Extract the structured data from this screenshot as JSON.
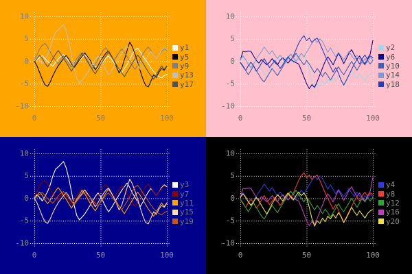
{
  "chart_data": {
    "type": "line",
    "title": "",
    "xlabel": "",
    "ylabel": "",
    "xlim": [
      0,
      100
    ],
    "ylim": [
      -10,
      10
    ],
    "xticks": [
      0,
      50,
      100
    ],
    "yticks": [
      10,
      5,
      0,
      -5,
      -10
    ],
    "grid": true,
    "legend_position": "right",
    "x": [
      0,
      2,
      4,
      6,
      8,
      10,
      12,
      14,
      16,
      18,
      20,
      22,
      24,
      26,
      28,
      30,
      32,
      34,
      36,
      38,
      40,
      42,
      44,
      46,
      48,
      50,
      52,
      54,
      56,
      58,
      60,
      62,
      64,
      66,
      68,
      70,
      72,
      74,
      76,
      78,
      80,
      82,
      84,
      86,
      88,
      90,
      92,
      94,
      96,
      98,
      100
    ],
    "shapes": {
      "L1": [
        0.5,
        0.2,
        0.9,
        1.3,
        0.6,
        0.0,
        -0.6,
        -1.1,
        -0.3,
        0.5,
        1.1,
        1.5,
        0.8,
        0.1,
        -0.7,
        -1.3,
        -0.7,
        0.1,
        0.8,
        1.4,
        0.9,
        0.2,
        -0.5,
        -1.1,
        -1.7,
        -0.9,
        -0.1,
        0.7,
        1.2,
        0.5,
        -0.3,
        -1.1,
        -1.9,
        -2.6,
        -1.6,
        -0.7,
        0.4,
        1.6,
        2.5,
        2.9,
        2.1,
        1.1,
        0.3,
        -0.6,
        -1.5,
        -2.3,
        -2.9,
        -3.4,
        -3.7,
        -3.2,
        -2.9
      ],
      "L2": [
        0.0,
        -1.0,
        -2.5,
        -4.0,
        -5.2,
        -5.6,
        -4.6,
        -3.2,
        -2.0,
        -1.0,
        -0.2,
        0.6,
        1.3,
        0.5,
        -0.6,
        -1.4,
        -0.6,
        0.3,
        1.1,
        1.9,
        1.1,
        0.3,
        -0.8,
        -1.9,
        -1.0,
        0.1,
        1.0,
        1.8,
        2.3,
        1.3,
        0.2,
        -1.2,
        -2.6,
        -1.5,
        0.4,
        2.4,
        4.3,
        3.2,
        1.6,
        -0.2,
        -2.2,
        -4.0,
        -5.4,
        -5.7,
        -4.4,
        -3.0,
        -3.6,
        -2.4,
        -1.6,
        -2.0,
        -1.1
      ],
      "L3": [
        0.3,
        1.5,
        2.8,
        3.6,
        4.0,
        3.2,
        2.1,
        1.0,
        0.2,
        -0.6,
        0.5,
        1.2,
        0.4,
        -0.5,
        -1.3,
        -0.5,
        0.6,
        1.4,
        2.0,
        1.2,
        0.3,
        -0.8,
        -1.6,
        -0.7,
        0.4,
        1.5,
        2.5,
        3.0,
        2.2,
        1.1,
        0.2,
        1.0,
        2.0,
        2.8,
        2.0,
        1.0,
        0.0,
        -1.0,
        -1.8,
        -0.8,
        0.5,
        1.6,
        2.6,
        3.2,
        2.4,
        1.4,
        0.6,
        1.4,
        2.2,
        2.8,
        2.4
      ],
      "L4": [
        0.2,
        0.8,
        0.2,
        -0.6,
        0.4,
        1.5,
        3.0,
        5.0,
        6.5,
        7.0,
        7.6,
        8.2,
        6.8,
        4.5,
        1.5,
        -1.5,
        -3.8,
        -4.8,
        -4.2,
        -3.5,
        -2.6,
        -1.6,
        -0.6,
        0.4,
        1.2,
        0.4,
        -0.8,
        -2.0,
        -3.0,
        -2.2,
        -1.2,
        -0.2,
        0.8,
        1.8,
        2.6,
        3.4,
        2.4,
        1.2,
        0.2,
        -0.8,
        -1.8,
        -0.8,
        0.4,
        1.4,
        2.2,
        1.4,
        0.6,
        1.4,
        2.4,
        3.0,
        2.6
      ],
      "L5": [
        -0.2,
        0.6,
        1.4,
        0.6,
        -0.4,
        -1.2,
        -0.4,
        0.6,
        1.6,
        2.4,
        1.6,
        0.6,
        -0.2,
        -1.2,
        -2.2,
        -1.2,
        -0.2,
        0.8,
        1.8,
        1.0,
        0.0,
        -1.0,
        -2.0,
        -2.8,
        -1.8,
        -0.8,
        0.2,
        1.2,
        2.0,
        1.2,
        0.2,
        -0.8,
        -1.8,
        -2.6,
        -3.4,
        -2.4,
        -1.4,
        -0.4,
        0.6,
        1.4,
        0.6,
        -0.4,
        -1.4,
        -2.4,
        -3.2,
        -4.0,
        -3.0,
        -2.0,
        -1.0,
        -1.8,
        -1.0
      ],
      "R1": [
        0.3,
        2.2,
        2.1,
        2.3,
        2.2,
        1.2,
        0.2,
        -0.4,
        0.4,
        -0.2,
        -0.8,
        -0.2,
        0.6,
        -0.2,
        -0.8,
        0.2,
        0.8,
        0.2,
        -0.4,
        0.4,
        0.0,
        -0.3,
        -0.6,
        -2.0,
        -3.5,
        -5.0,
        -6.1,
        -5.2,
        -5.8,
        -4.5,
        -3.0,
        -1.5,
        0.0,
        1.0,
        0.2,
        -0.8,
        0.5,
        1.8,
        0.8,
        -0.5,
        0.6,
        1.8,
        2.6,
        1.4,
        0.4,
        1.2,
        0.2,
        -0.6,
        0.6,
        1.6,
        4.7
      ],
      "R2": [
        -0.3,
        -1.2,
        -2.0,
        -1.0,
        -0.2,
        -1.0,
        -2.2,
        -1.4,
        -0.4,
        0.6,
        -0.4,
        -1.4,
        -0.6,
        0.2,
        -0.6,
        -1.6,
        -0.8,
        0.2,
        1.0,
        0.2,
        1.2,
        2.6,
        4.0,
        5.0,
        5.7,
        4.6,
        5.2,
        4.2,
        4.8,
        5.2,
        4.0,
        2.6,
        1.2,
        0.0,
        -1.2,
        -2.4,
        -1.4,
        -2.6,
        -4.2,
        -5.3,
        -4.2,
        -3.0,
        -1.8,
        -0.6,
        0.4,
        -0.6,
        0.6,
        1.4,
        0.4,
        1.2,
        0.8
      ],
      "R3": [
        0.4,
        1.2,
        0.4,
        -0.6,
        -1.4,
        -0.6,
        0.4,
        1.4,
        2.2,
        3.2,
        2.4,
        1.6,
        2.4,
        1.4,
        0.6,
        1.4,
        0.6,
        -0.4,
        0.6,
        1.6,
        0.8,
        0.0,
        0.8,
        1.8,
        1.0,
        2.0,
        3.0,
        4.0,
        5.0,
        4.2,
        5.0,
        4.4,
        3.2,
        2.0,
        3.0,
        2.0,
        1.0,
        2.0,
        1.2,
        0.4,
        1.2,
        2.2,
        1.2,
        0.4,
        1.4,
        0.6,
        -0.4,
        0.6,
        -0.2,
        0.8,
        0.4
      ],
      "R4": [
        0.2,
        1.0,
        0.2,
        -0.8,
        -1.6,
        -0.8,
        0.2,
        -0.6,
        -1.6,
        -2.6,
        -3.5,
        -2.4,
        -1.2,
        -0.2,
        0.8,
        0.2,
        -0.6,
        0.4,
        1.2,
        0.4,
        -0.4,
        0.6,
        1.4,
        0.6,
        1.2,
        0.2,
        -2.0,
        -4.5,
        -6.2,
        -5.0,
        -5.6,
        -4.4,
        -5.2,
        -4.0,
        -4.6,
        -3.6,
        -4.4,
        -3.2,
        -4.0,
        -5.4,
        -4.4,
        -3.2,
        -2.0,
        -3.0,
        -3.8,
        -2.8,
        -3.6,
        -4.4,
        -3.4,
        -2.8,
        -2.5
      ],
      "R5": [
        -0.2,
        -1.0,
        -2.0,
        -3.0,
        -2.0,
        -1.0,
        -2.0,
        -3.0,
        -4.0,
        -4.6,
        -3.6,
        -2.6,
        -1.6,
        -2.4,
        -3.2,
        -2.2,
        -1.2,
        -0.2,
        0.8,
        1.6,
        0.8,
        1.8,
        0.8,
        0.0,
        -0.8,
        0.2,
        -0.6,
        -1.6,
        -2.6,
        -1.6,
        -2.4,
        -3.4,
        -2.4,
        -3.2,
        -4.2,
        -3.2,
        -2.2,
        -1.2,
        -2.2,
        -3.0,
        -2.0,
        -1.0,
        0.0,
        -1.0,
        -2.0,
        -1.0,
        0.0,
        -0.8,
        0.2,
        -0.6,
        0.2
      ],
      "note": "values estimated from gridlines; y units, x = 0..100 step 2"
    },
    "panels": [
      {
        "id": "top-left",
        "background": "#FFA500",
        "grid_color": "rgba(255,255,255,0.95)",
        "tick_color": "#7F7F7F",
        "legend_text_color": "#4D4D4D",
        "series": [
          {
            "name": "y1",
            "color": "#FFFFFF",
            "shape": "L1"
          },
          {
            "name": "y5",
            "color": "#000000",
            "shape": "L2"
          },
          {
            "name": "y9",
            "color": "#7F7F7F",
            "shape": "L3"
          },
          {
            "name": "y13",
            "color": "#BFBFBF",
            "shape": "L4"
          },
          {
            "name": "y17",
            "color": "#525252",
            "shape": "L5"
          }
        ]
      },
      {
        "id": "top-right",
        "background": "#FFC0CB",
        "grid_color": "rgba(255,255,255,0.85)",
        "tick_color": "#6E6E6E",
        "legend_text_color": "#4D4D4D",
        "series": [
          {
            "name": "y2",
            "color": "#A6D7E8",
            "shape": "R4"
          },
          {
            "name": "y6",
            "color": "#0A0A90",
            "shape": "R1"
          },
          {
            "name": "y10",
            "color": "#4060B8",
            "shape": "R5"
          },
          {
            "name": "y14",
            "color": "#7E9CD4",
            "shape": "R3"
          },
          {
            "name": "y18",
            "color": "#2A3CB8",
            "shape": "R2"
          }
        ]
      },
      {
        "id": "bottom-left",
        "background": "#00008B",
        "grid_color": "rgba(255,255,255,0.95)",
        "tick_color": "#8A8A9A",
        "legend_text_color": "#74748A",
        "series": [
          {
            "name": "y3",
            "color": "#FFFFFF",
            "shape": "L4"
          },
          {
            "name": "y7",
            "color": "#8B0000",
            "shape": "L3"
          },
          {
            "name": "y11",
            "color": "#FFA500",
            "shape": "L5"
          },
          {
            "name": "y15",
            "color": "#FFDEAD",
            "shape": "L2"
          },
          {
            "name": "y19",
            "color": "#C4560E",
            "shape": "L1"
          }
        ]
      },
      {
        "id": "bottom-right",
        "background": "#000000",
        "grid_color": "#C9C9C9",
        "tick_color": "#9A9A9A",
        "legend_text_color": "#8C8C8C",
        "series": [
          {
            "name": "y4",
            "color": "#2E3BDC",
            "shape": "R3"
          },
          {
            "name": "y8",
            "color": "#F03B32",
            "shape": "R2"
          },
          {
            "name": "y12",
            "color": "#2EA43A",
            "shape": "R5"
          },
          {
            "name": "y16",
            "color": "#BE3EC0",
            "shape": "R1"
          },
          {
            "name": "y20",
            "color": "#EEE431",
            "shape": "R4"
          }
        ]
      }
    ]
  }
}
